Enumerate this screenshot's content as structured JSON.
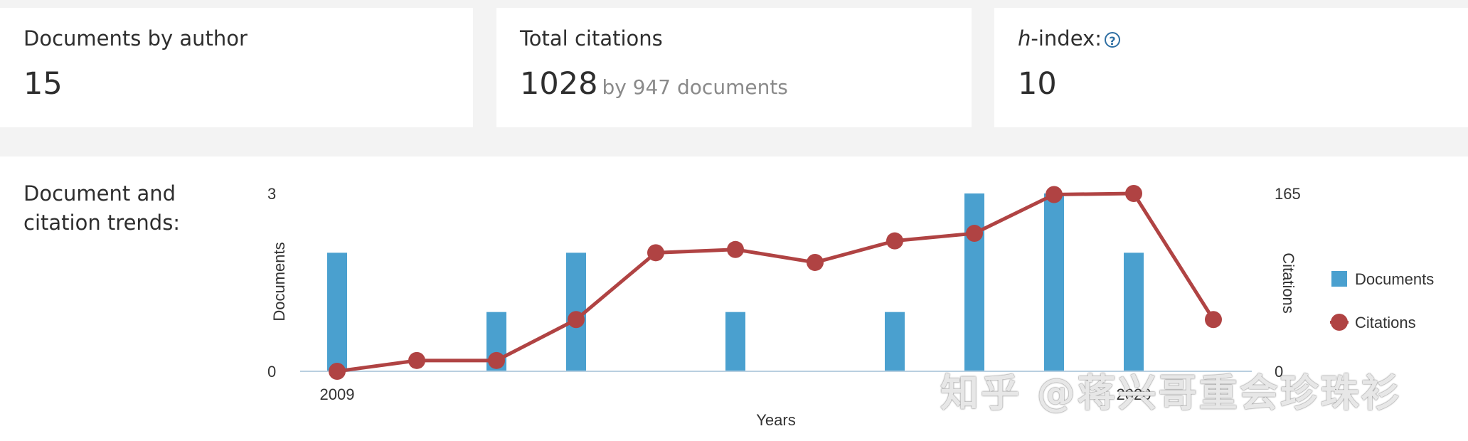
{
  "metrics": {
    "documents": {
      "label": "Documents by author",
      "value": "15"
    },
    "citations": {
      "label": "Total citations",
      "value": "1028",
      "sub": "by 947 documents"
    },
    "hindex": {
      "label_italic": "h",
      "label_rest": "-index:",
      "help": "?",
      "value": "10"
    }
  },
  "trends": {
    "title": "Document and citation trends:"
  },
  "watermark": "知乎 @蒋兴哥重会珍珠衫",
  "colors": {
    "documents": "#4aa0cf",
    "citations": "#b04343",
    "axis": "#b9cfe0"
  },
  "chart_data": {
    "type": "bar+line",
    "x": [
      2009,
      2010,
      2011,
      2012,
      2013,
      2014,
      2015,
      2016,
      2017,
      2018,
      2019,
      2020
    ],
    "x_tick_labels": [
      "2009",
      "2020"
    ],
    "xlabel": "Years",
    "series": [
      {
        "name": "Documents",
        "type": "bar",
        "axis": "left",
        "values": [
          2,
          0,
          1,
          2,
          0,
          1,
          0,
          1,
          3,
          3,
          2,
          0
        ]
      },
      {
        "name": "Citations",
        "type": "line",
        "axis": "right",
        "values": [
          0,
          10,
          10,
          48,
          110,
          113,
          101,
          121,
          128,
          164,
          165,
          48
        ]
      }
    ],
    "y_left": {
      "label": "Documents",
      "range": [
        0,
        3
      ],
      "ticks": [
        "0",
        "3"
      ]
    },
    "y_right": {
      "label": "Citations",
      "range": [
        0,
        165
      ],
      "ticks": [
        "0",
        "165"
      ]
    },
    "legend_position": "right"
  }
}
